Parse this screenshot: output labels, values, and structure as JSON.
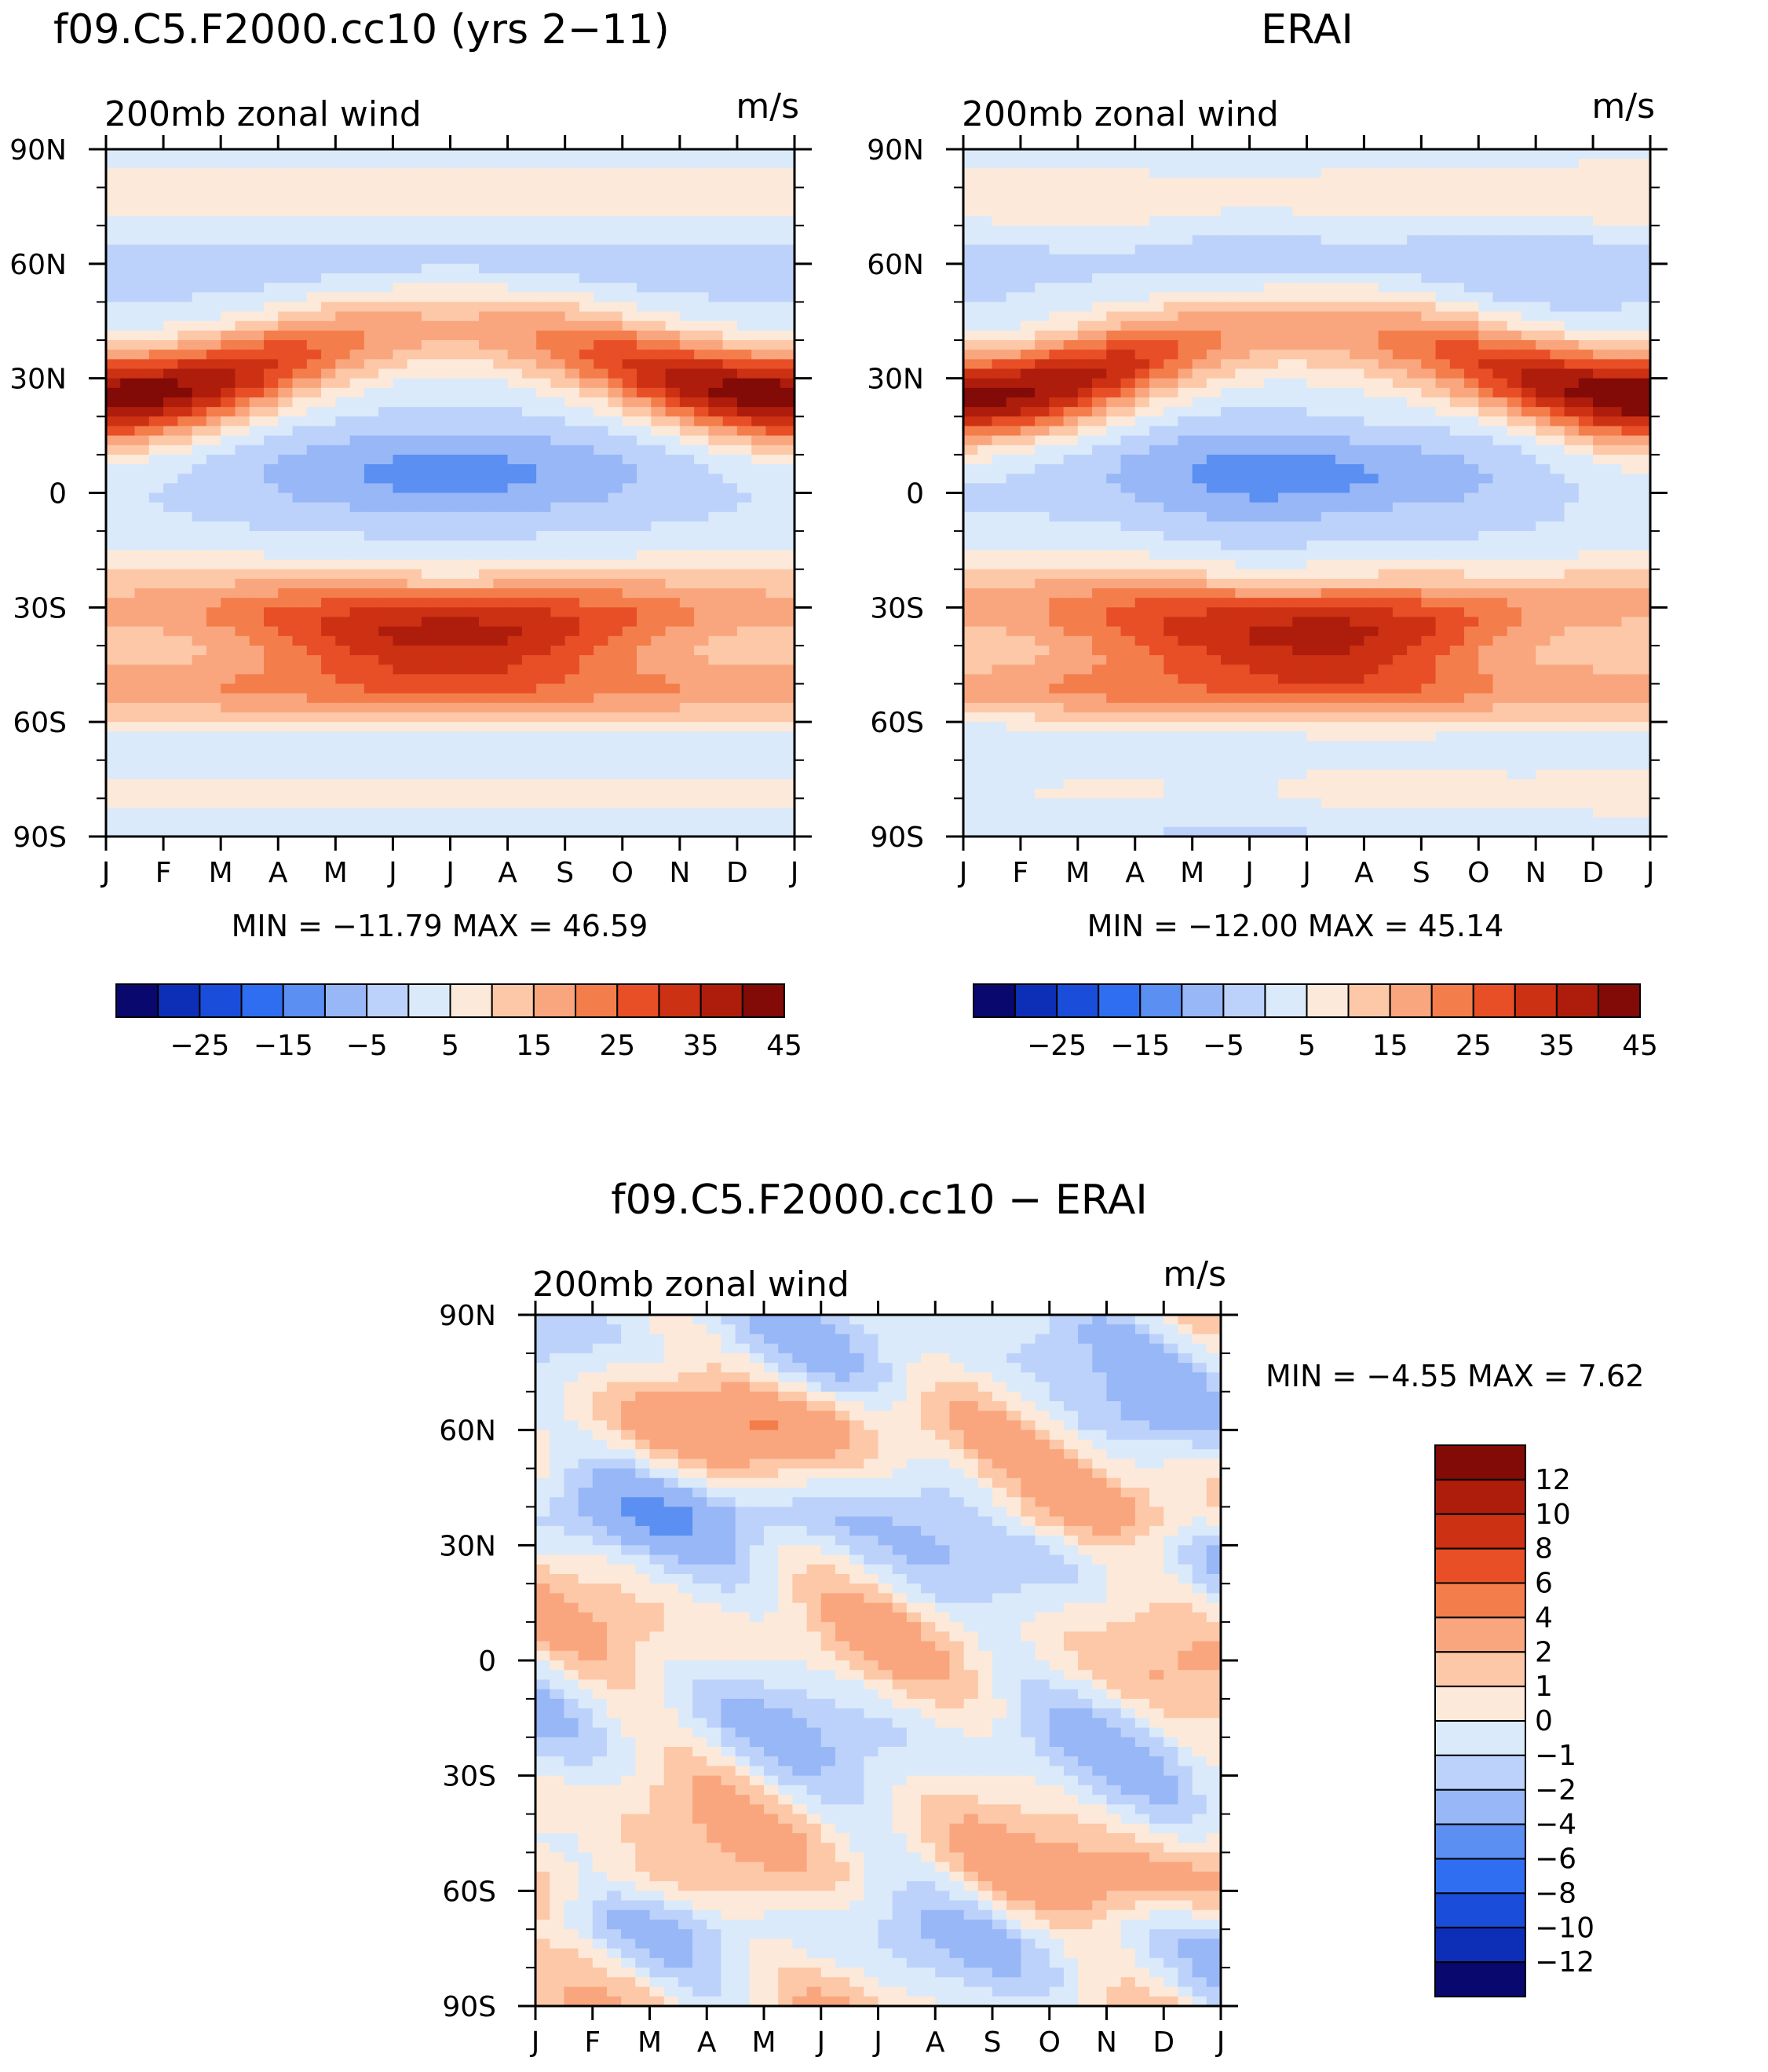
{
  "colors": {
    "full": [
      "#08086e",
      "#0d2fb8",
      "#1b4ddb",
      "#2f6ef0",
      "#5b8ff2",
      "#98b7f7",
      "#bcd2fa",
      "#daeafa",
      "#fde9d9",
      "#fcc8a8",
      "#f9a67e",
      "#f47d4c",
      "#e84f26",
      "#cd3113",
      "#ae1d0c",
      "#820a07"
    ],
    "diff": [
      "#08086e",
      "#0d2fb8",
      "#1b4ddb",
      "#2f6ef0",
      "#5b8ff2",
      "#98b7f7",
      "#bcd2fa",
      "#daeafa",
      "#fde9d9",
      "#fcc8a8",
      "#f9a67e",
      "#f47d4c",
      "#e84f26",
      "#cd3113",
      "#ae1d0c",
      "#820a07"
    ]
  },
  "chart_data": [
    {
      "type": "heatmap",
      "title": "f09.C5.F2000.cc10 (yrs 2−11)",
      "left_label": "200mb zonal wind",
      "right_label": "m/s",
      "x_ticks": [
        "J",
        "F",
        "M",
        "A",
        "M",
        "J",
        "J",
        "A",
        "S",
        "O",
        "N",
        "D",
        "J"
      ],
      "y_ticks": [
        "90N",
        "60N",
        "30N",
        "0",
        "30S",
        "60S",
        "90S"
      ],
      "x_range": [
        0,
        12
      ],
      "y_range": [
        -90,
        90
      ],
      "stats_text": "MIN = −11.79 MAX =   46.59",
      "min": -11.79,
      "max": 46.59,
      "levels": [
        -30,
        -25,
        -20,
        -15,
        -10,
        -5,
        0,
        5,
        10,
        15,
        20,
        25,
        30,
        35,
        40,
        45
      ],
      "colorbar_labels": [
        "−25",
        "−15",
        "−5",
        "5",
        "15",
        "25",
        "35",
        "45"
      ],
      "colorbar_orientation": "horizontal"
    },
    {
      "type": "heatmap",
      "title": "ERAI",
      "left_label": "200mb zonal wind",
      "right_label": "m/s",
      "x_ticks": [
        "J",
        "F",
        "M",
        "A",
        "M",
        "J",
        "J",
        "A",
        "S",
        "O",
        "N",
        "D",
        "J"
      ],
      "y_ticks": [
        "90N",
        "60N",
        "30N",
        "0",
        "30S",
        "60S",
        "90S"
      ],
      "x_range": [
        0,
        12
      ],
      "y_range": [
        -90,
        90
      ],
      "stats_text": "MIN = −12.00 MAX =   45.14",
      "min": -12.0,
      "max": 45.14,
      "levels": [
        -30,
        -25,
        -20,
        -15,
        -10,
        -5,
        0,
        5,
        10,
        15,
        20,
        25,
        30,
        35,
        40,
        45
      ],
      "colorbar_labels": [
        "−25",
        "−15",
        "−5",
        "5",
        "15",
        "25",
        "35",
        "45"
      ],
      "colorbar_orientation": "horizontal"
    },
    {
      "type": "heatmap",
      "title": "f09.C5.F2000.cc10 − ERAI",
      "left_label": "200mb zonal wind",
      "right_label": "m/s",
      "x_ticks": [
        "J",
        "F",
        "M",
        "A",
        "M",
        "J",
        "J",
        "A",
        "S",
        "O",
        "N",
        "D",
        "J"
      ],
      "y_ticks": [
        "90N",
        "60N",
        "30N",
        "0",
        "30S",
        "60S",
        "90S"
      ],
      "x_range": [
        0,
        12
      ],
      "y_range": [
        -90,
        90
      ],
      "stats_text": "MIN =   −4.55 MAX =     7.62",
      "min": -4.55,
      "max": 7.62,
      "levels": [
        -12,
        -10,
        -8,
        -6,
        -4,
        -2,
        -1,
        0,
        1,
        2,
        4,
        6,
        8,
        10,
        12
      ],
      "colorbar_labels": [
        "12",
        "10",
        "8",
        "6",
        "4",
        "2",
        "1",
        "0",
        "−1",
        "−2",
        "−4",
        "−6",
        "−8",
        "−10",
        "−12"
      ],
      "colorbar_orientation": "vertical"
    }
  ]
}
